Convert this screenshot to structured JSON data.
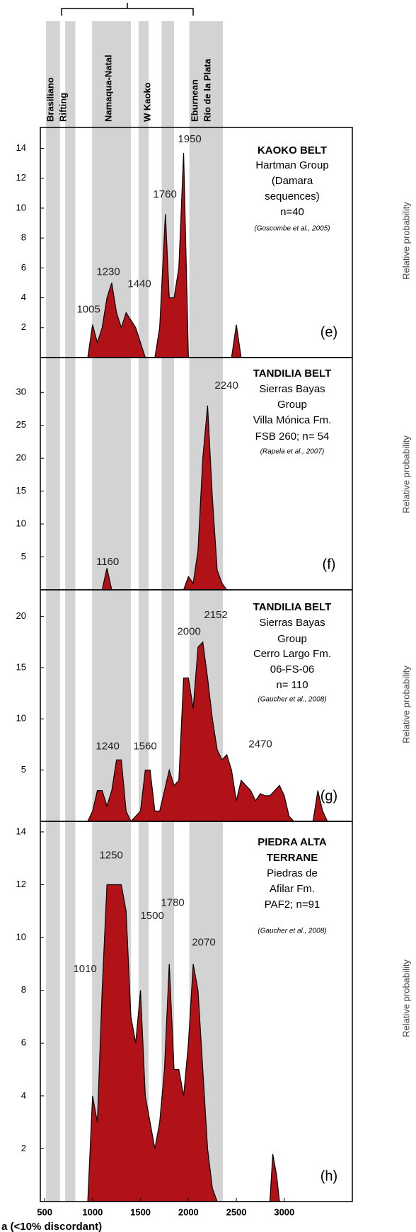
{
  "events": {
    "labels": [
      "Brasiliano",
      "Rifting",
      "Namaqua-Natal",
      "W Kaoko",
      "Eburnean",
      "Río de la Plata"
    ],
    "bands": [
      [
        515,
        660
      ],
      [
        715,
        820
      ],
      [
        995,
        1400
      ],
      [
        1480,
        1585
      ],
      [
        1720,
        1850
      ],
      [
        2010,
        2360
      ]
    ]
  },
  "caption": "a (<10% discordant)",
  "chart_data": [
    {
      "type": "area",
      "tag": "(e)",
      "y_label": "Relative probability",
      "color": "#b01218",
      "label_lines": [
        "KAOKO BELT",
        "Hartman Group",
        "(Damara",
        "sequences)",
        "n=40",
        "(Goscombe et al., 2005)"
      ],
      "xlim": [
        455,
        3710
      ],
      "ylim": [
        0,
        15.4
      ],
      "yticks": [
        2,
        4,
        6,
        8,
        10,
        12,
        14
      ],
      "x": [
        950,
        1000,
        1050,
        1100,
        1150,
        1200,
        1250,
        1300,
        1350,
        1400,
        1450,
        1500,
        1550,
        1650,
        1700,
        1760,
        1800,
        1850,
        1900,
        1950,
        2000,
        2450,
        2500,
        2550
      ],
      "values": [
        0,
        2.2,
        1,
        2,
        4,
        5,
        3,
        2,
        3,
        2.5,
        2,
        1,
        0,
        0,
        2,
        9.6,
        4,
        4,
        6,
        13.7,
        0,
        0,
        2.2,
        0
      ],
      "annotations": [
        {
          "text": "1950",
          "x": 2013,
          "y": 14.6
        },
        {
          "text": "1760",
          "x": 1755,
          "y": 10.9
        },
        {
          "text": "1230",
          "x": 1164,
          "y": 5.7
        },
        {
          "text": "1005",
          "x": 958,
          "y": 3.2
        },
        {
          "text": "1440",
          "x": 1489,
          "y": 4.9
        }
      ]
    },
    {
      "type": "area",
      "tag": "(f)",
      "y_label": "Relative probability",
      "color": "#b01218",
      "label_lines": [
        "TANDILIA BELT",
        "Sierras Bayas",
        "Group",
        "Villa Mónica Fm.",
        "FSB 260; n= 54",
        "(Rapela  et al., 2007)"
      ],
      "xlim": [
        455,
        3710
      ],
      "ylim": [
        0,
        35.3
      ],
      "yticks": [
        5,
        10,
        15,
        20,
        25,
        30
      ],
      "x": [
        1100,
        1150,
        1200,
        1950,
        2000,
        2050,
        2100,
        2150,
        2200,
        2250,
        2300,
        2350,
        2400
      ],
      "values": [
        0,
        3.3,
        0,
        0,
        2,
        1,
        6,
        20,
        28,
        14,
        3,
        1,
        0
      ],
      "annotations": [
        {
          "text": "2240",
          "x": 2397,
          "y": 31
        },
        {
          "text": "1160",
          "x": 1157,
          "y": 4.2
        }
      ]
    },
    {
      "type": "area",
      "tag": "(g)",
      "y_label": "Relative probability",
      "color": "#b01218",
      "label_lines": [
        "TANDILIA BELT",
        "Sierras Bayas",
        "Group",
        "Cerro Largo Fm.",
        "06-FS-06",
        "n= 110",
        "(Gaucher et al., 2008)"
      ],
      "xlim": [
        455,
        3710
      ],
      "ylim": [
        0,
        22.6
      ],
      "yticks": [
        5,
        10,
        15,
        20
      ],
      "x": [
        950,
        1000,
        1050,
        1100,
        1150,
        1200,
        1250,
        1300,
        1350,
        1400,
        1500,
        1550,
        1600,
        1650,
        1700,
        1750,
        1800,
        1850,
        1900,
        1950,
        2000,
        2050,
        2100,
        2150,
        2200,
        2250,
        2300,
        2350,
        2400,
        2450,
        2500,
        2550,
        2600,
        2650,
        2700,
        2750,
        2800,
        2850,
        2900,
        2950,
        3000,
        3050,
        3100,
        3300,
        3350,
        3400,
        3450
      ],
      "values": [
        0,
        1,
        3,
        3,
        1.5,
        3,
        6,
        6,
        1,
        0,
        1,
        5,
        5,
        1,
        1,
        3,
        5,
        3.5,
        4,
        14,
        14,
        11,
        17,
        17.5,
        14,
        10,
        7,
        6,
        6.5,
        5,
        2,
        4,
        3.5,
        3,
        2,
        2.7,
        2.5,
        2.5,
        3,
        3.5,
        2.5,
        0.5,
        0,
        0,
        3,
        1,
        0
      ],
      "annotations": [
        {
          "text": "2152",
          "x": 2286,
          "y": 20.1
        },
        {
          "text": "2000",
          "x": 2006,
          "y": 18.5
        },
        {
          "text": "1240",
          "x": 1157,
          "y": 7.3
        },
        {
          "text": "1560",
          "x": 1548,
          "y": 7.3
        },
        {
          "text": "2470",
          "x": 2751,
          "y": 7.5
        }
      ]
    },
    {
      "type": "area",
      "tag": "(h)",
      "y_label": "Relative probability",
      "color": "#b01218",
      "label_lines": [
        "PIEDRA ALTA",
        "TERRANE",
        "Piedras de",
        "Afilar Fm.",
        "PAF2; n=91",
        "(Gaucher et al., 2008)"
      ],
      "xlim": [
        455,
        3710
      ],
      "ylim": [
        0,
        14.4
      ],
      "yticks": [
        2,
        4,
        6,
        8,
        10,
        12,
        14
      ],
      "xticks": [
        500,
        1000,
        1500,
        2000,
        2500,
        3000
      ],
      "x": [
        950,
        1000,
        1050,
        1100,
        1150,
        1200,
        1250,
        1300,
        1350,
        1400,
        1450,
        1500,
        1550,
        1600,
        1650,
        1700,
        1750,
        1800,
        1850,
        1900,
        1950,
        2000,
        2050,
        2100,
        2150,
        2200,
        2250,
        2300,
        2850,
        2880,
        2920,
        2950
      ],
      "values": [
        0,
        4,
        3,
        8,
        12,
        12,
        12,
        12,
        11,
        7,
        6,
        8,
        4,
        3,
        2,
        3,
        5,
        9,
        5,
        5,
        4,
        6,
        9,
        8,
        5,
        2,
        0.5,
        0,
        0,
        1.8,
        1,
        0
      ],
      "annotations": [
        {
          "text": "1250",
          "x": 1194,
          "y": 13.1
        },
        {
          "text": "1780",
          "x": 1836,
          "y": 11.3
        },
        {
          "text": "1500",
          "x": 1622,
          "y": 10.8
        },
        {
          "text": "2070",
          "x": 2160,
          "y": 9.8
        },
        {
          "text": "1010",
          "x": 921,
          "y": 8.8
        }
      ]
    }
  ]
}
